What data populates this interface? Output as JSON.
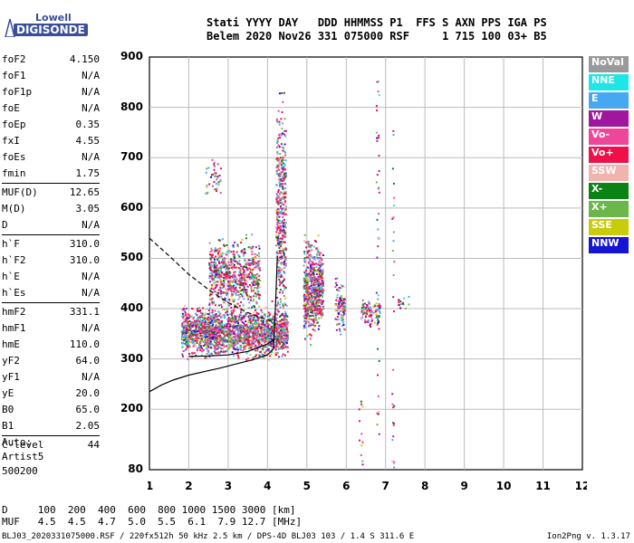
{
  "logo": {
    "line1": "Lowell",
    "line2": "DIGISONDE"
  },
  "header": {
    "line1": "Stati YYYY DAY   DDD HHMMSS P1  FFS S AXN PPS IGA PS",
    "line2": "Belem 2020 Nov26 331 075000 RSF     1 715 100 03+ B5"
  },
  "params": [
    [
      {
        "key": "foF2",
        "value": "4.150"
      },
      {
        "key": "foF1",
        "value": "N/A"
      },
      {
        "key": "foF1p",
        "value": "N/A"
      },
      {
        "key": "foE",
        "value": "N/A"
      },
      {
        "key": "foEp",
        "value": "0.35"
      },
      {
        "key": "fxI",
        "value": "4.55"
      },
      {
        "key": "foEs",
        "value": "N/A"
      },
      {
        "key": "fmin",
        "value": "1.75"
      }
    ],
    [
      {
        "key": "MUF(D)",
        "value": "12.65"
      },
      {
        "key": "M(D)",
        "value": "3.05"
      },
      {
        "key": "D",
        "value": "N/A"
      }
    ],
    [
      {
        "key": "h`F",
        "value": "310.0"
      },
      {
        "key": "h`F2",
        "value": "310.0"
      },
      {
        "key": "h`E",
        "value": "N/A"
      },
      {
        "key": "h`Es",
        "value": "N/A"
      }
    ],
    [
      {
        "key": "hmF2",
        "value": "331.1"
      },
      {
        "key": "hmF1",
        "value": "N/A"
      },
      {
        "key": "hmE",
        "value": "110.0"
      },
      {
        "key": "yF2",
        "value": "64.0"
      },
      {
        "key": "yF1",
        "value": "N/A"
      },
      {
        "key": "yE",
        "value": "20.0"
      },
      {
        "key": "B0",
        "value": "65.0"
      },
      {
        "key": "B1",
        "value": "2.05"
      }
    ],
    [
      {
        "key": "C-level",
        "value": "44"
      }
    ]
  ],
  "auto": {
    "line1": "Auto:",
    "line2": "Artist5",
    "line3": "500200"
  },
  "legend": [
    {
      "label": "NoVal",
      "color": "#9a9a9a"
    },
    {
      "label": "NNE",
      "color": "#1ee6e6"
    },
    {
      "label": "E",
      "color": "#46a8f2"
    },
    {
      "label": "W",
      "color": "#a0169e"
    },
    {
      "label": "Vo-",
      "color": "#f0469a"
    },
    {
      "label": "Vo+",
      "color": "#ee1048"
    },
    {
      "label": "SSW",
      "color": "#f2b2ae"
    },
    {
      "label": "X-",
      "color": "#0a8214"
    },
    {
      "label": "X+",
      "color": "#6cb64c"
    },
    {
      "label": "SSE",
      "color": "#c8cc0a"
    },
    {
      "label": "NNW",
      "color": "#1414d2"
    }
  ],
  "chart_data": {
    "type": "scatter",
    "title": "",
    "xlabel": "",
    "ylabel": "",
    "xlim": [
      1,
      12
    ],
    "ylim": [
      80,
      900
    ],
    "x_ticks": [
      1,
      2,
      3,
      4,
      5,
      6,
      7,
      8,
      9,
      10,
      11,
      12
    ],
    "y_ticks": [
      80,
      200,
      300,
      400,
      500,
      600,
      700,
      800,
      900
    ],
    "grid": true,
    "echo_clusters": [
      {
        "f_range": [
          1.8,
          4.5
        ],
        "h_range": [
          290,
          420
        ],
        "density": "high"
      },
      {
        "f_range": [
          2.5,
          3.8
        ],
        "h_range": [
          380,
          560
        ],
        "density": "medium"
      },
      {
        "f_range": [
          2.4,
          2.8
        ],
        "h_range": [
          600,
          720
        ],
        "density": "low"
      },
      {
        "f_range": [
          4.2,
          4.45
        ],
        "h_range": [
          300,
          880
        ],
        "density": "medium"
      },
      {
        "f_range": [
          4.9,
          5.4
        ],
        "h_range": [
          320,
          560
        ],
        "density": "high"
      },
      {
        "f_range": [
          5.7,
          5.95
        ],
        "h_range": [
          330,
          480
        ],
        "density": "medium"
      },
      {
        "f_range": [
          6.35,
          6.85
        ],
        "h_range": [
          360,
          430
        ],
        "density": "medium"
      },
      {
        "f_range": [
          7.3,
          7.6
        ],
        "h_range": [
          380,
          440
        ],
        "density": "low"
      },
      {
        "f_range": [
          6.3,
          6.4
        ],
        "h_range": [
          90,
          240
        ],
        "density": "low"
      },
      {
        "f_range": [
          6.75,
          6.82
        ],
        "h_range": [
          140,
          890
        ],
        "density": "low"
      },
      {
        "f_range": [
          7.15,
          7.2
        ],
        "h_range": [
          80,
          770
        ],
        "density": "low"
      }
    ],
    "curves": [
      {
        "name": "",
        "style": "solid",
        "x": [
          1.0,
          1.3,
          1.6,
          2.0,
          2.4,
          2.8,
          3.2,
          3.6,
          4.0,
          4.15,
          4.2,
          4.25
        ],
        "y": [
          235,
          248,
          258,
          268,
          275,
          282,
          290,
          298,
          308,
          320,
          400,
          505
        ]
      },
      {
        "name": "",
        "style": "dashed",
        "x": [
          1.0,
          1.5,
          2.0,
          2.5,
          3.0,
          3.5,
          4.0,
          4.2
        ],
        "y": [
          540,
          505,
          468,
          438,
          412,
          392,
          378,
          372
        ]
      },
      {
        "name": "",
        "style": "solid",
        "x": [
          2.0,
          2.5,
          3.0,
          3.5,
          4.0,
          4.2
        ],
        "y": [
          305,
          306,
          308,
          315,
          330,
          340
        ]
      }
    ]
  },
  "bottom": {
    "line1": "D     100  200  400  600  800 1000 1500 3000 [km]",
    "line2": "MUF   4.5  4.5  4.7  5.0  5.5  6.1  7.9 12.7 [MHz]"
  },
  "footer": "BLJ03_2020331075000.RSF / 220fx512h 50 kHz 2.5 km / DPS-4D BLJ03 103 / 1.4 S 311.6 E",
  "version": "Ion2Png v. 1.3.17"
}
